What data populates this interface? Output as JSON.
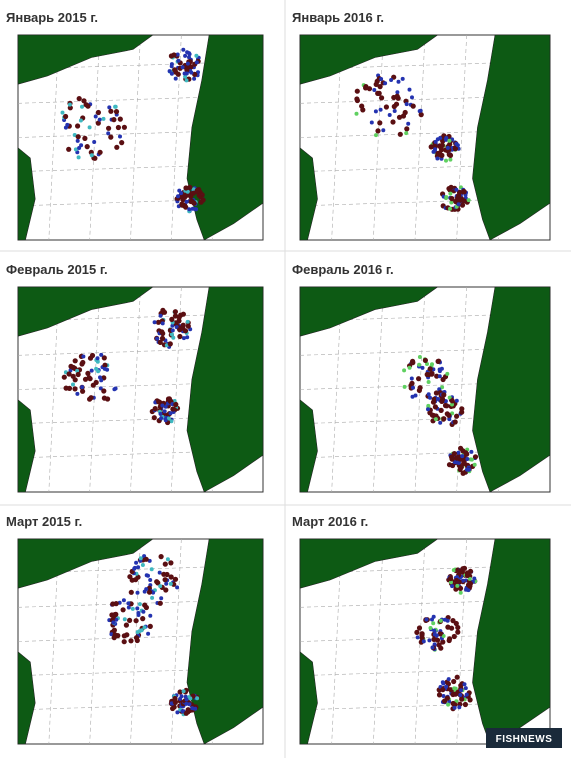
{
  "panels": [
    {
      "title": "Январь 2015 г."
    },
    {
      "title": "Январь 2016 г."
    },
    {
      "title": "Февраль 2015 г."
    },
    {
      "title": "Февраль 2016 г."
    },
    {
      "title": "Март 2015 г."
    },
    {
      "title": "Март 2016 г."
    }
  ],
  "watermark": "FISHNEWS"
}
